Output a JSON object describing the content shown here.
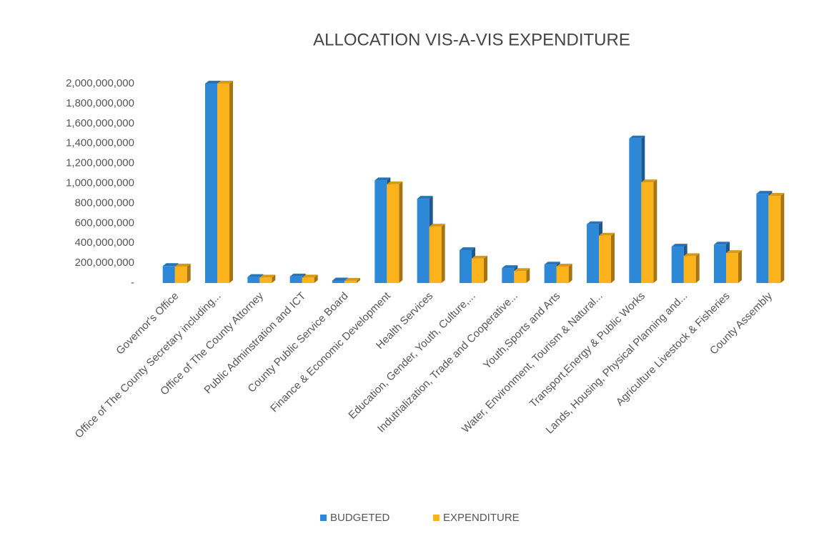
{
  "chart_data": {
    "type": "bar3d",
    "title": "ALLOCATION VIS-A-VIS EXPENDITURE",
    "categories": [
      "Governor's  Office",
      "Office of The County Secretary including...",
      "Office of The County Attorney",
      "Public Adminstration  and ICT",
      "County Public Service Board",
      "Finance & Economic Development",
      "Health Services",
      "Education, Gender, Youth, Culture,...",
      "Indutrialization, Trade and Cooperative...",
      "Youth,Sports and Arts",
      "Water, Environment, Tourism & Natural...",
      "Transport,Energy & Public Works",
      "Lands, Housing, Physical Planning and...",
      "Agriculture Livestock & Fisheries",
      "County Assembly"
    ],
    "series": [
      {
        "name": "BUDGETED",
        "color": "#2e88d8",
        "values": [
          170000000,
          2000000000,
          60000000,
          65000000,
          25000000,
          1030000000,
          845000000,
          330000000,
          150000000,
          185000000,
          590000000,
          1450000000,
          365000000,
          385000000,
          895000000
        ]
      },
      {
        "name": "EXPENDITURE",
        "color": "#fdb41c",
        "values": [
          165000000,
          2000000000,
          55000000,
          55000000,
          22000000,
          990000000,
          565000000,
          245000000,
          120000000,
          165000000,
          475000000,
          1010000000,
          270000000,
          300000000,
          875000000
        ]
      }
    ],
    "ylim": [
      0,
      2000000000
    ],
    "yticks": [
      {
        "value": 0,
        "label": "-"
      },
      {
        "value": 200000000,
        "label": "200,000,000"
      },
      {
        "value": 400000000,
        "label": "400,000,000"
      },
      {
        "value": 600000000,
        "label": "600,000,000"
      },
      {
        "value": 800000000,
        "label": "800,000,000"
      },
      {
        "value": 1000000000,
        "label": "1,000,000,000"
      },
      {
        "value": 1200000000,
        "label": "1,200,000,000"
      },
      {
        "value": 1400000000,
        "label": "1,400,000,000"
      },
      {
        "value": 1600000000,
        "label": "1,600,000,000"
      },
      {
        "value": 1800000000,
        "label": "1,800,000,000"
      },
      {
        "value": 2000000000,
        "label": "2,000,000,000"
      }
    ],
    "legend": "bottom"
  }
}
